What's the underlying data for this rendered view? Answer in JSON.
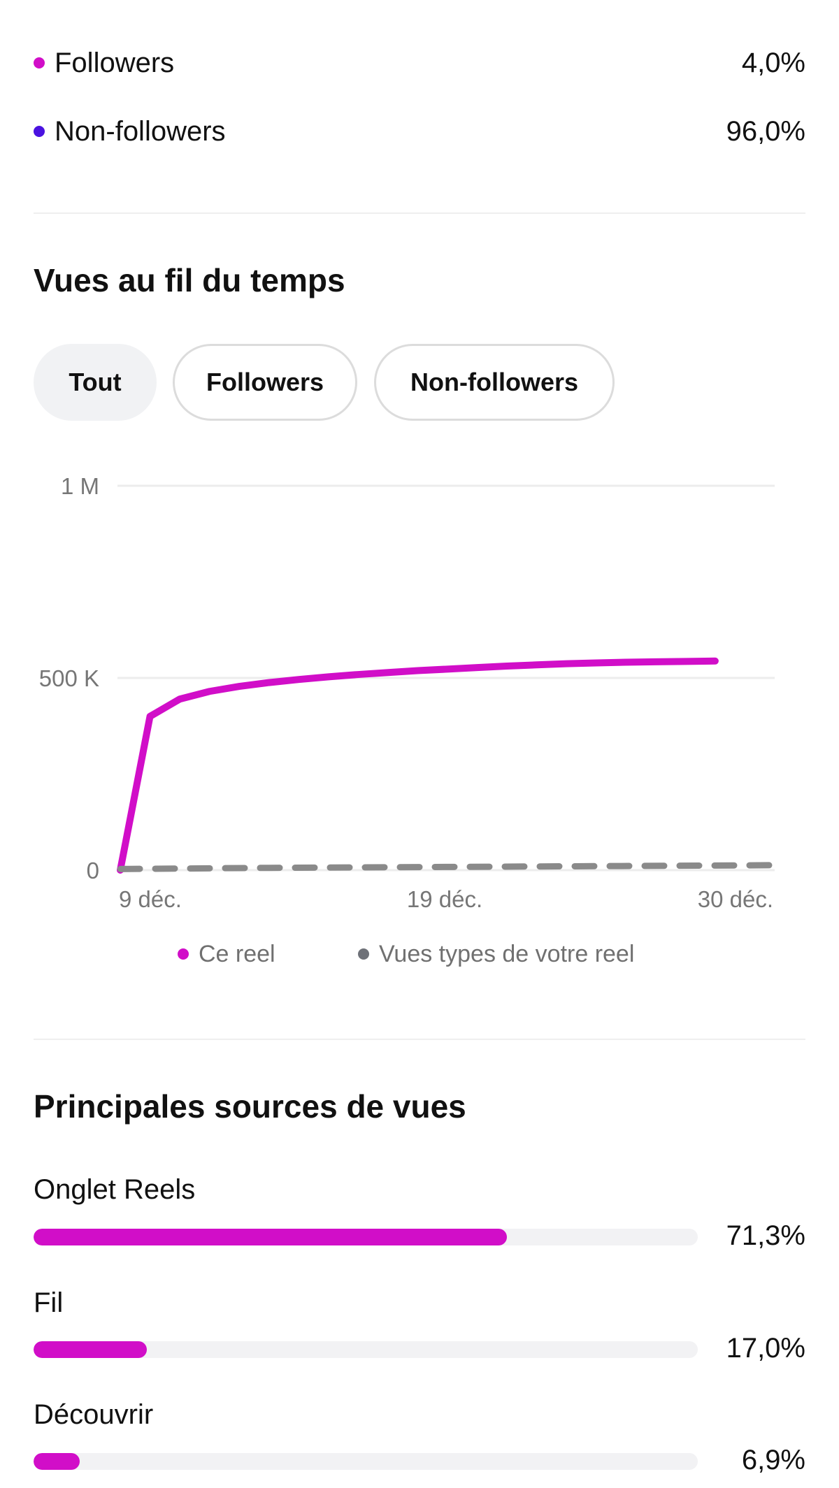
{
  "audience": {
    "items": [
      {
        "label": "Followers",
        "value": "4,0%",
        "color": "#d10ec8"
      },
      {
        "label": "Non-followers",
        "value": "96,0%",
        "color": "#4a12e0"
      }
    ]
  },
  "views_over_time": {
    "title": "Vues au fil du temps",
    "filters": [
      {
        "label": "Tout",
        "active": true
      },
      {
        "label": "Followers",
        "active": false
      },
      {
        "label": "Non-followers",
        "active": false
      }
    ],
    "legend": [
      {
        "label": "Ce reel",
        "color": "#d10ec8"
      },
      {
        "label": "Vues types de votre reel",
        "color": "#6e7178"
      }
    ]
  },
  "chart_data": {
    "type": "line",
    "xlabel": "",
    "ylabel": "",
    "x_tick_labels": [
      "9 déc.",
      "19 déc.",
      "30 déc."
    ],
    "y_tick_labels": [
      "1 M",
      "500 K",
      "0"
    ],
    "x_range_days": [
      0,
      22
    ],
    "ylim": [
      0,
      1000000
    ],
    "series": [
      {
        "name": "Ce reel",
        "color": "#d10ec8",
        "style": "solid",
        "x": [
          0,
          1,
          2,
          3,
          4,
          5,
          6,
          7,
          8,
          9,
          10,
          11,
          12,
          13,
          14,
          15,
          16,
          17,
          18,
          19,
          20
        ],
        "y": [
          0,
          400000,
          445000,
          465000,
          478000,
          488000,
          496000,
          503000,
          509000,
          514000,
          519000,
          523000,
          527000,
          531000,
          534000,
          537000,
          539000,
          541000,
          542000,
          543000,
          544000
        ]
      },
      {
        "name": "Vues types de votre reel",
        "color": "#8a8a8a",
        "style": "dashed",
        "x": [
          0,
          5,
          10,
          15,
          20,
          22
        ],
        "y": [
          3000,
          6000,
          8000,
          10000,
          12000,
          13000
        ]
      }
    ],
    "grid": true
  },
  "sources": {
    "title": "Principales sources de vues",
    "items": [
      {
        "label": "Onglet Reels",
        "value": "71,3%",
        "fraction": 0.713
      },
      {
        "label": "Fil",
        "value": "17,0%",
        "fraction": 0.17
      },
      {
        "label": "Découvrir",
        "value": "6,9%",
        "fraction": 0.069
      }
    ],
    "bar_color": "#d10ec8"
  }
}
